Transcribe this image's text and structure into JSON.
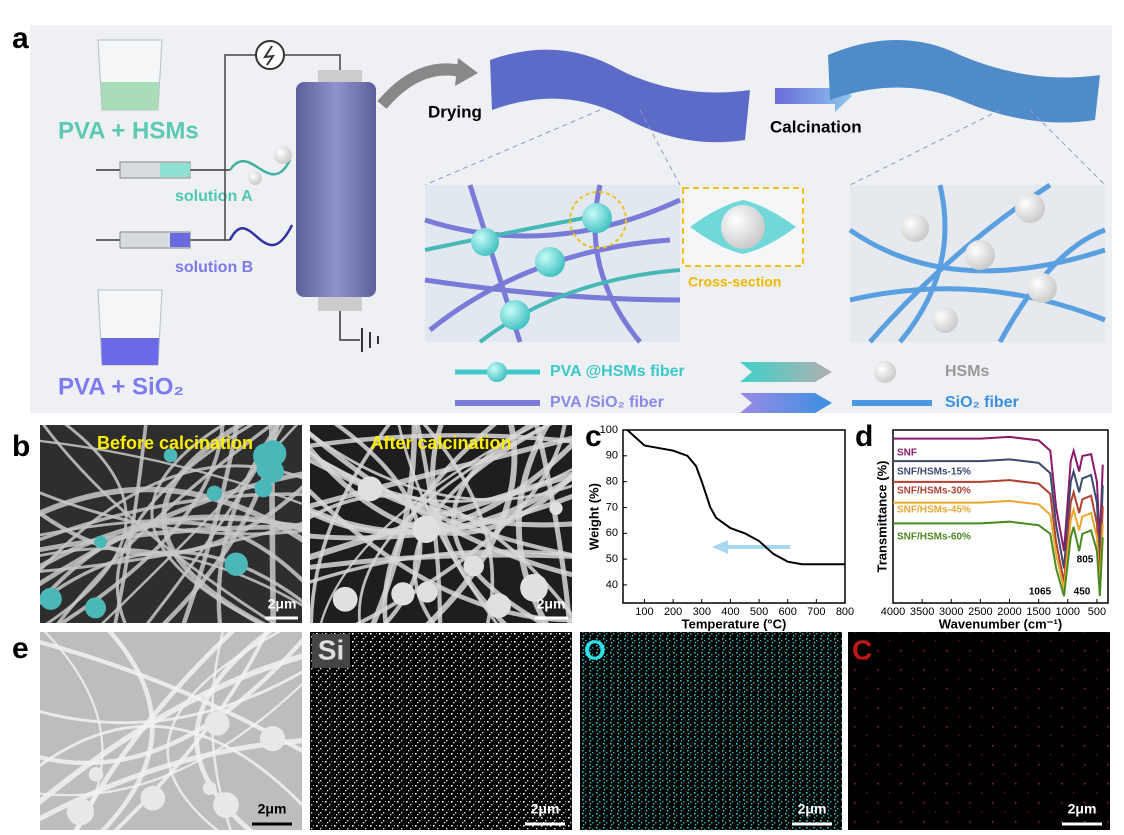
{
  "panel_a": {
    "label": "a",
    "beaker_1": "PVA + HSMs",
    "solution_a": "solution A",
    "solution_b": "solution B",
    "beaker_2": "PVA + SiO₂",
    "step_1": "Drying",
    "step_2": "Calcination",
    "inset": "Cross-section",
    "legend": [
      "PVA @HSMs fiber",
      "PVA /SiO₂ fiber",
      "HSMs",
      "SiO₂ fiber"
    ]
  },
  "panel_b": {
    "label": "b",
    "images": [
      {
        "title": "Before calcination",
        "scale": "2μm"
      },
      {
        "title": "After calcination",
        "scale": "2μm"
      }
    ]
  },
  "panel_e": {
    "label": "e",
    "images": [
      {
        "scale": "2μm"
      },
      {
        "title": "Si",
        "scale": "2μm"
      },
      {
        "title": "O",
        "scale": "2μm"
      },
      {
        "title": "C",
        "scale": "2μm"
      }
    ]
  },
  "chart_data": [
    {
      "type": "line",
      "label": "c",
      "x_label": "Temperature (°C)",
      "y_label": "Weight (%)",
      "x": [
        40,
        60,
        100,
        150,
        200,
        250,
        280,
        300,
        330,
        350,
        400,
        450,
        500,
        550,
        600,
        650,
        700,
        800
      ],
      "series": [
        {
          "color": "#000000",
          "values": [
            100,
            98,
            94,
            93,
            92,
            90,
            86,
            80,
            70,
            66,
            62,
            60,
            57,
            52,
            49,
            48,
            48,
            48
          ]
        }
      ],
      "xlim": [
        25,
        800
      ],
      "ylim": [
        33,
        100
      ],
      "xticks": [
        100,
        200,
        300,
        400,
        500,
        600,
        700,
        800
      ],
      "yticks": [
        40,
        50,
        60,
        70,
        80,
        90,
        100
      ]
    },
    {
      "type": "line",
      "label": "d",
      "x_label": "Wavenumber (cm⁻¹)",
      "y_label": "Transmittance (%)",
      "x": [
        4000,
        2500,
        2000,
        1500,
        1300,
        1200,
        1065,
        950,
        900,
        805,
        750,
        600,
        500,
        450,
        400
      ],
      "series": [
        {
          "name": "SNF",
          "color": "#8b1a6b",
          "values": [
            95,
            95,
            96,
            94,
            88,
            55,
            30,
            82,
            88,
            76,
            85,
            86,
            70,
            35,
            80
          ]
        },
        {
          "name": "SNF/HSMs-15%",
          "color": "#3a4a6e",
          "values": [
            82,
            82,
            83,
            81,
            75,
            45,
            20,
            70,
            76,
            64,
            72,
            74,
            58,
            22,
            68
          ]
        },
        {
          "name": "SNF/HSMs-30%",
          "color": "#b04030",
          "values": [
            70,
            70,
            71,
            69,
            63,
            35,
            12,
            58,
            64,
            52,
            60,
            62,
            46,
            14,
            56
          ]
        },
        {
          "name": "SNF/HSMs-45%",
          "color": "#e8a830",
          "values": [
            58,
            58,
            59,
            57,
            51,
            28,
            8,
            48,
            54,
            42,
            50,
            52,
            38,
            8,
            46
          ]
        },
        {
          "name": "SNF/HSMs-60%",
          "color": "#4a8a20",
          "values": [
            46,
            46,
            47,
            45,
            40,
            20,
            4,
            38,
            44,
            30,
            40,
            42,
            30,
            4,
            38
          ]
        }
      ],
      "xlim": [
        4000,
        310
      ],
      "ylim": [
        0,
        100
      ],
      "xticks": [
        4000,
        3500,
        3000,
        2500,
        2000,
        1500,
        1000,
        500
      ],
      "annotations": [
        "805",
        "1065",
        "450"
      ]
    }
  ]
}
